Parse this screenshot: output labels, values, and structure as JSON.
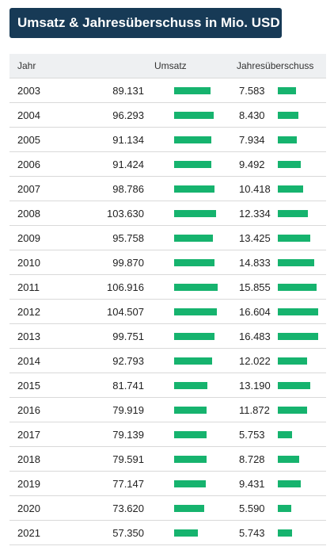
{
  "title": "Umsatz & Jahresüberschuss in Mio. USD",
  "colors": {
    "bar": "#16b36e",
    "title_bg": "#173a56"
  },
  "chart_data": {
    "type": "table",
    "columns": [
      "Jahr",
      "Umsatz",
      "Jahresüberschuss"
    ],
    "rows": [
      {
        "year": "2003",
        "revenue": "89.131",
        "revenue_value": 89131,
        "net": "7.583",
        "net_value": 7583
      },
      {
        "year": "2004",
        "revenue": "96.293",
        "revenue_value": 96293,
        "net": "8.430",
        "net_value": 8430
      },
      {
        "year": "2005",
        "revenue": "91.134",
        "revenue_value": 91134,
        "net": "7.934",
        "net_value": 7934
      },
      {
        "year": "2006",
        "revenue": "91.424",
        "revenue_value": 91424,
        "net": "9.492",
        "net_value": 9492
      },
      {
        "year": "2007",
        "revenue": "98.786",
        "revenue_value": 98786,
        "net": "10.418",
        "net_value": 10418
      },
      {
        "year": "2008",
        "revenue": "103.630",
        "revenue_value": 103630,
        "net": "12.334",
        "net_value": 12334
      },
      {
        "year": "2009",
        "revenue": "95.758",
        "revenue_value": 95758,
        "net": "13.425",
        "net_value": 13425
      },
      {
        "year": "2010",
        "revenue": "99.870",
        "revenue_value": 99870,
        "net": "14.833",
        "net_value": 14833
      },
      {
        "year": "2011",
        "revenue": "106.916",
        "revenue_value": 106916,
        "net": "15.855",
        "net_value": 15855
      },
      {
        "year": "2012",
        "revenue": "104.507",
        "revenue_value": 104507,
        "net": "16.604",
        "net_value": 16604
      },
      {
        "year": "2013",
        "revenue": "99.751",
        "revenue_value": 99751,
        "net": "16.483",
        "net_value": 16483
      },
      {
        "year": "2014",
        "revenue": "92.793",
        "revenue_value": 92793,
        "net": "12.022",
        "net_value": 12022
      },
      {
        "year": "2015",
        "revenue": "81.741",
        "revenue_value": 81741,
        "net": "13.190",
        "net_value": 13190
      },
      {
        "year": "2016",
        "revenue": "79.919",
        "revenue_value": 79919,
        "net": "11.872",
        "net_value": 11872
      },
      {
        "year": "2017",
        "revenue": "79.139",
        "revenue_value": 79139,
        "net": "5.753",
        "net_value": 5753
      },
      {
        "year": "2018",
        "revenue": "79.591",
        "revenue_value": 79591,
        "net": "8.728",
        "net_value": 8728
      },
      {
        "year": "2019",
        "revenue": "77.147",
        "revenue_value": 77147,
        "net": "9.431",
        "net_value": 9431
      },
      {
        "year": "2020",
        "revenue": "73.620",
        "revenue_value": 73620,
        "net": "5.590",
        "net_value": 5590
      },
      {
        "year": "2021",
        "revenue": "57.350",
        "revenue_value": 57350,
        "net": "5.743",
        "net_value": 5743
      }
    ]
  }
}
